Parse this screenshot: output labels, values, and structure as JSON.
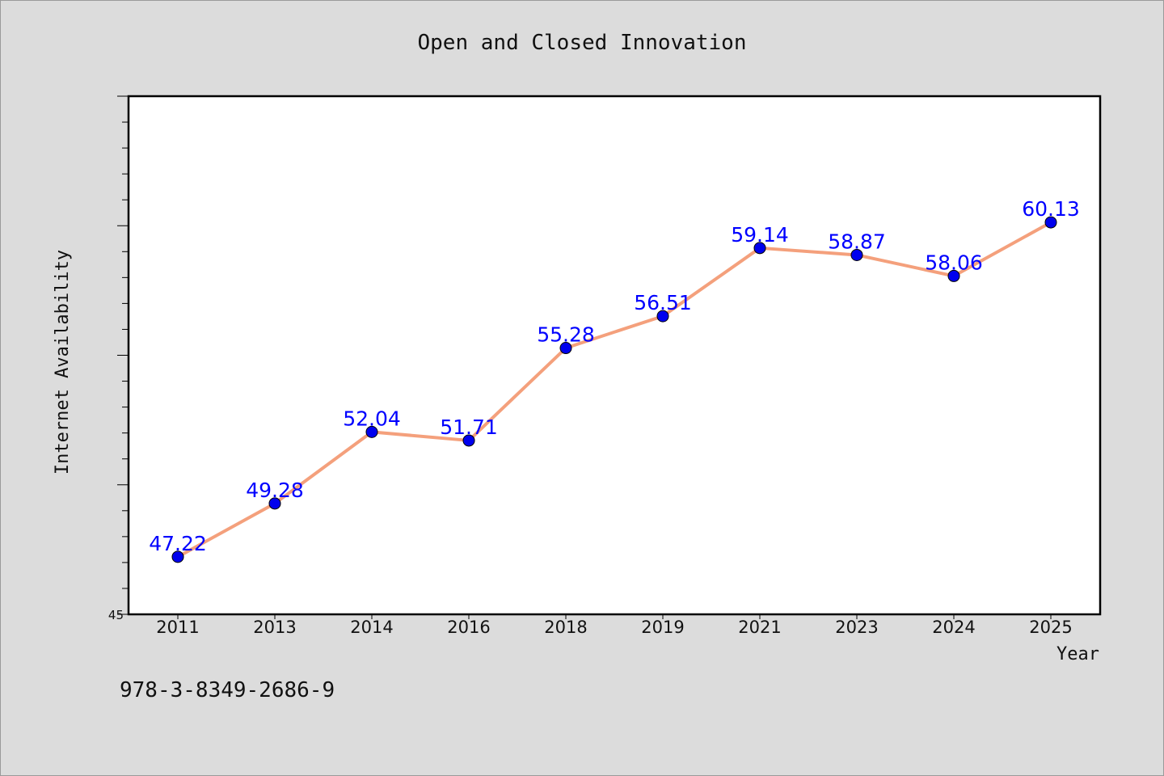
{
  "chart_data": {
    "type": "line",
    "title": "Open and Closed Innovation",
    "xlabel": "Year",
    "ylabel": "Internet Availability",
    "categories": [
      "2011",
      "2013",
      "2014",
      "2016",
      "2018",
      "2019",
      "2021",
      "2023",
      "2024",
      "2025"
    ],
    "series": [
      {
        "values": [
          47.22,
          49.28,
          52.04,
          51.71,
          55.28,
          56.51,
          59.14,
          58.87,
          58.06,
          60.13
        ]
      }
    ],
    "ylim": [
      45,
      65
    ],
    "ytick_labels": [
      "45"
    ],
    "grid": false,
    "data_labels": true,
    "line_color": "#f4a07c",
    "marker_color": "#0000ee",
    "label_color": "#0000ff"
  },
  "footer": {
    "isbn": "978-3-8349-2686-9"
  }
}
